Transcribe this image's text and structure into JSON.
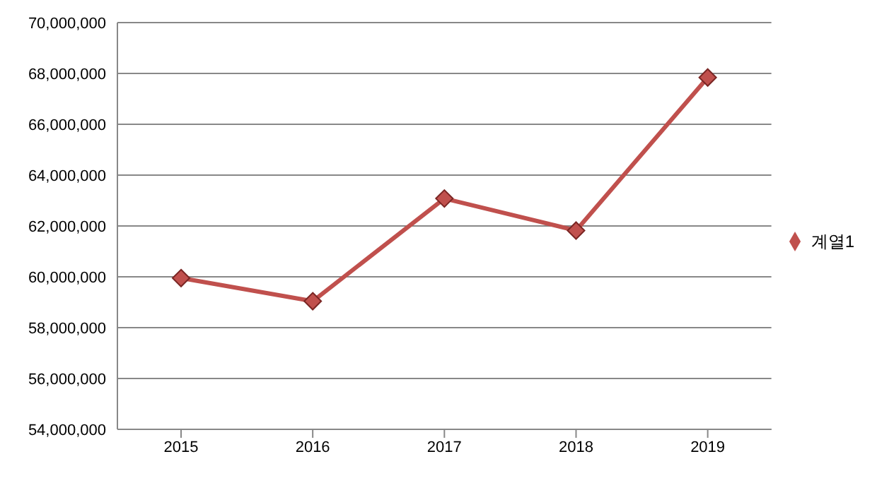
{
  "chart_data": {
    "type": "line",
    "categories": [
      "2015",
      "2016",
      "2017",
      "2018",
      "2019"
    ],
    "series": [
      {
        "name": "계열1",
        "color": "#c0504d",
        "values": [
          59950000,
          59040000,
          63080000,
          61820000,
          67840000
        ]
      }
    ],
    "ylim": [
      54000000,
      70000000
    ],
    "yticks": [
      {
        "value": 54000000,
        "label": "54,000,000"
      },
      {
        "value": 56000000,
        "label": "56,000,000"
      },
      {
        "value": 58000000,
        "label": "58,000,000"
      },
      {
        "value": 60000000,
        "label": "60,000,000"
      },
      {
        "value": 62000000,
        "label": "62,000,000"
      },
      {
        "value": 64000000,
        "label": "64,000,000"
      },
      {
        "value": 66000000,
        "label": "66,000,000"
      },
      {
        "value": 68000000,
        "label": "68,000,000"
      },
      {
        "value": 70000000,
        "label": "70,000,000"
      }
    ],
    "grid": "y",
    "legend": "right",
    "marker": "diamond",
    "line_style": "solid"
  }
}
